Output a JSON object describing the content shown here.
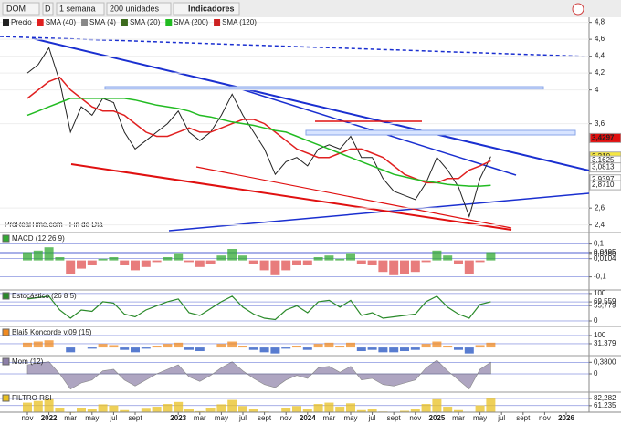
{
  "toolbar": {
    "symbol": "DOM",
    "period_key": "D",
    "period": "1 semana",
    "units": "200 unidades",
    "indicators": "Indicadores"
  },
  "watermark": "ProRealTime.com - Fin de Día",
  "categories": [
    "nov",
    null,
    "2022",
    null,
    "mar",
    null,
    "may",
    null,
    "jul",
    null,
    "sept",
    null,
    null,
    null,
    "2023",
    null,
    "mar",
    null,
    "may",
    null,
    "jul",
    null,
    "sept",
    null,
    "nov",
    null,
    "2024",
    null,
    "mar",
    null,
    "may",
    null,
    "jul",
    null,
    "sept",
    null,
    "nov",
    null,
    "2025",
    null,
    "mar",
    null,
    "may",
    null,
    "jul",
    null,
    "sept",
    null,
    "nov",
    null,
    "2026"
  ],
  "main": {
    "ylim": [
      2.31,
      4.85
    ],
    "yticks": [
      {
        "value": 4.8,
        "label": "4,8"
      },
      {
        "value": 4.6,
        "label": "4,6"
      },
      {
        "value": 4.4,
        "label": "4,4"
      },
      {
        "value": 4.2,
        "label": "4,2"
      },
      4,
      {
        "value": 3.6,
        "label": "3,6"
      },
      {
        "value": 2.6,
        "label": "2,6"
      },
      {
        "value": 2.4,
        "label": "2,4"
      }
    ],
    "series": [
      {
        "name": "Precio",
        "color": "#222222",
        "values": [
          4.2,
          4.3,
          4.5,
          4.1,
          3.5,
          3.8,
          3.7,
          3.9,
          3.85,
          3.5,
          3.3,
          3.4,
          3.5,
          3.6,
          3.75,
          3.5,
          3.4,
          3.5,
          3.7,
          3.95,
          3.7,
          3.5,
          3.3,
          3.0,
          3.15,
          3.2,
          3.1,
          3.3,
          3.35,
          3.3,
          3.45,
          3.2,
          3.2,
          2.95,
          2.8,
          2.75,
          2.7,
          2.9,
          3.2,
          3.05,
          2.85,
          2.5,
          2.95,
          3.21,
          null,
          null,
          null,
          null,
          null,
          null,
          null
        ]
      },
      {
        "name": "SMA (40)",
        "color": "#e02020",
        "values": [
          3.9,
          4.0,
          4.1,
          4.15,
          4.0,
          3.9,
          3.8,
          3.75,
          3.75,
          3.7,
          3.6,
          3.5,
          3.45,
          3.45,
          3.5,
          3.55,
          3.5,
          3.5,
          3.55,
          3.6,
          3.65,
          3.65,
          3.6,
          3.5,
          3.4,
          3.3,
          3.25,
          3.2,
          3.2,
          3.25,
          3.3,
          3.3,
          3.25,
          3.2,
          3.1,
          3.0,
          2.95,
          2.9,
          2.9,
          2.95,
          2.95,
          3.05,
          3.1,
          3.16,
          null,
          null,
          null,
          null,
          null,
          null,
          null
        ]
      },
      {
        "name": "SMA (4)",
        "color": "#888888"
      },
      {
        "name": "SMA (20)",
        "color": "#3d6b1e"
      },
      {
        "name": "SMA (200)",
        "color": "#22bb22",
        "values": [
          3.7,
          3.75,
          3.8,
          3.85,
          3.9,
          3.9,
          3.9,
          3.9,
          3.9,
          3.9,
          3.88,
          3.85,
          3.82,
          3.8,
          3.78,
          3.75,
          3.7,
          3.68,
          3.65,
          3.62,
          3.6,
          3.58,
          3.55,
          3.52,
          3.5,
          3.45,
          3.4,
          3.35,
          3.3,
          3.25,
          3.2,
          3.15,
          3.1,
          3.05,
          3.0,
          2.97,
          2.94,
          2.92,
          2.9,
          2.88,
          2.87,
          2.86,
          2.86,
          2.87,
          null,
          null,
          null,
          null,
          null,
          null,
          null
        ]
      },
      {
        "name": "SMA (120)",
        "color": "#cc2222"
      }
    ],
    "price_labels": [
      {
        "value": 3.4297,
        "label": "3,4297",
        "color": "#e01010"
      },
      {
        "value": 3.21,
        "label": "3,210",
        "color": "#f5e642"
      },
      {
        "value": 3.1625,
        "label": "3,1625",
        "color": "#ffffff"
      },
      {
        "value": 3.0813,
        "label": "3,0813",
        "color": "#ffffff"
      },
      {
        "value": 2.9397,
        "label": "2,9397",
        "color": "#ffffff"
      },
      {
        "value": 2.871,
        "label": "2,8710",
        "color": "#ffffff"
      }
    ]
  },
  "panels": [
    {
      "title": "MACD (12 26 9)",
      "type": "bar",
      "color": "#33aa33",
      "color_negative": "#e05050",
      "ylim": [
        -0.18,
        0.17
      ],
      "yticks": [
        {
          "value": 0.1,
          "label": "0,1"
        },
        {
          "value": 0.0495,
          "label": "0,0495"
        },
        {
          "value": 0.038,
          "label": "0,0380"
        },
        {
          "value": 0.0104,
          "label": "0,0104"
        },
        {
          "value": -0.1,
          "label": "-0,1"
        }
      ],
      "values": [
        0.05,
        0.06,
        0.08,
        0.02,
        -0.08,
        -0.05,
        -0.03,
        0.01,
        0.02,
        -0.03,
        -0.06,
        -0.04,
        -0.01,
        0.02,
        0.04,
        -0.01,
        -0.04,
        -0.02,
        0.03,
        0.07,
        0.03,
        -0.02,
        -0.06,
        -0.09,
        -0.06,
        -0.03,
        -0.03,
        0.02,
        0.03,
        0.01,
        0.04,
        -0.02,
        -0.03,
        -0.07,
        -0.09,
        -0.08,
        -0.07,
        -0.01,
        0.06,
        0.03,
        -0.02,
        -0.08,
        -0.01,
        0.05,
        null,
        null,
        null,
        null,
        null,
        null,
        null
      ]
    },
    {
      "title": "Estocástico (26 8 5)",
      "type": "line",
      "color": "#2a8a2a",
      "ylim": [
        -20,
        113
      ],
      "yticks": [
        100,
        {
          "value": 69.559,
          "label": "69,559"
        },
        {
          "value": 55.779,
          "label": "55,779"
        },
        0
      ],
      "values": [
        80,
        85,
        90,
        40,
        10,
        40,
        35,
        70,
        65,
        25,
        15,
        40,
        55,
        70,
        80,
        30,
        20,
        45,
        70,
        90,
        50,
        25,
        10,
        5,
        40,
        55,
        30,
        70,
        75,
        50,
        75,
        20,
        30,
        10,
        15,
        20,
        25,
        70,
        90,
        50,
        25,
        10,
        60,
        70,
        null,
        null,
        null,
        null,
        null,
        null,
        null
      ]
    },
    {
      "title": "Blai5 Koncorde v.09 (15)",
      "type": "bar",
      "color": "#f08a20",
      "color_negative": "#2050c0",
      "ylim": [
        -68,
        176
      ],
      "yticks": [
        100,
        {
          "value": 31.379,
          "label": "31,379"
        }
      ],
      "values": [
        40,
        50,
        60,
        0,
        -40,
        0,
        -10,
        30,
        20,
        -20,
        -40,
        -10,
        10,
        30,
        40,
        -20,
        -30,
        0,
        30,
        50,
        10,
        -20,
        -40,
        -50,
        -10,
        10,
        -20,
        30,
        40,
        10,
        40,
        -30,
        -20,
        -40,
        -40,
        -30,
        -20,
        30,
        50,
        10,
        -20,
        -50,
        20,
        40,
        null,
        null,
        null,
        null,
        null,
        null,
        null
      ]
    },
    {
      "title": "Mom (12)",
      "type": "area",
      "color": "#8c7fa8",
      "ylim": [
        -0.6,
        0.6
      ],
      "yticks": [
        {
          "value": 0.38,
          "label": "0,3800"
        },
        0
      ],
      "values": [
        0.3,
        0.35,
        0.4,
        0,
        -0.5,
        -0.3,
        -0.2,
        0.1,
        0.15,
        -0.2,
        -0.4,
        -0.2,
        0,
        0.15,
        0.3,
        -0.1,
        -0.25,
        -0.05,
        0.2,
        0.4,
        0.1,
        -0.15,
        -0.35,
        -0.45,
        -0.2,
        -0.05,
        -0.15,
        0.2,
        0.25,
        0.05,
        0.25,
        -0.2,
        -0.15,
        -0.35,
        -0.4,
        -0.3,
        -0.2,
        0.2,
        0.45,
        0.1,
        -0.2,
        -0.5,
        0.15,
        0.38,
        null,
        null,
        null,
        null,
        null,
        null,
        null
      ]
    },
    {
      "title": "FILTRO RSI",
      "type": "bar",
      "color": "#e8c020",
      "color_negative": "#3050d0",
      "ylim": [
        42,
        101
      ],
      "yticks": [
        {
          "value": 82.282,
          "label": "82,282"
        },
        {
          "value": 61.235,
          "label": "61,235"
        }
      ],
      "values": [
        70,
        75,
        80,
        55,
        40,
        55,
        50,
        65,
        62,
        48,
        42,
        52,
        58,
        66,
        72,
        50,
        45,
        55,
        65,
        78,
        60,
        50,
        44,
        42,
        55,
        60,
        50,
        66,
        70,
        58,
        68,
        48,
        50,
        44,
        43,
        46,
        50,
        66,
        80,
        58,
        48,
        42,
        62,
        82,
        null,
        null,
        null,
        null,
        null,
        null,
        null
      ]
    }
  ]
}
